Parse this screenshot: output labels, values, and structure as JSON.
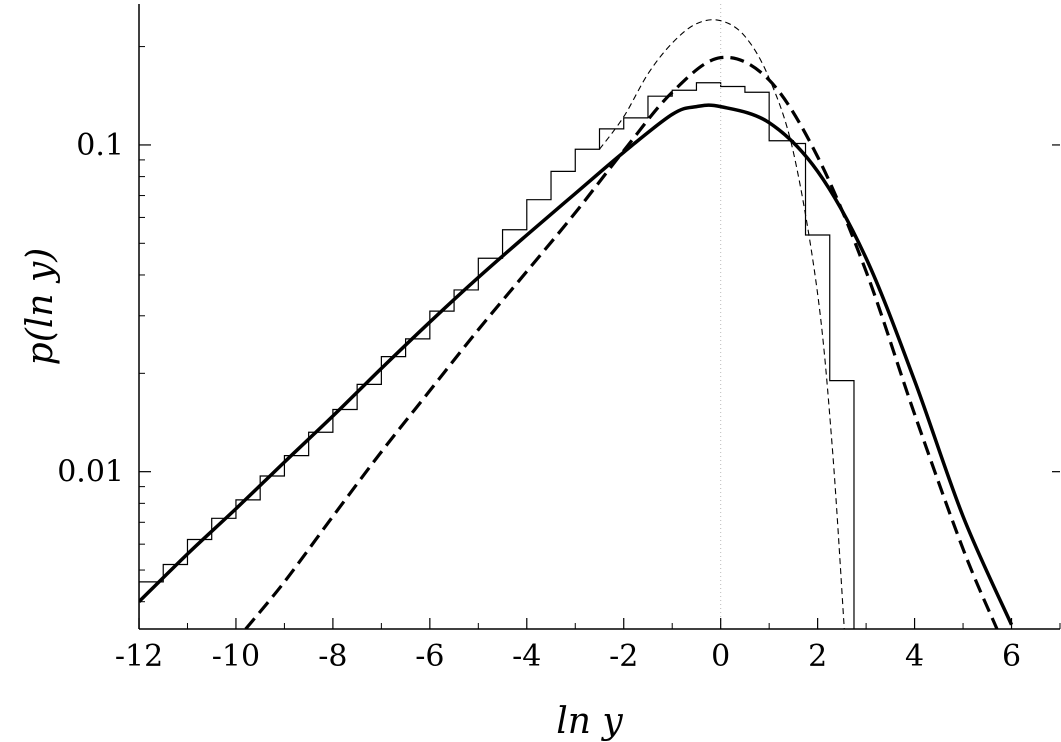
{
  "chart_data": {
    "type": "line",
    "xlabel": "ln y",
    "ylabel": "p(ln y)",
    "xlim": [
      -12,
      7
    ],
    "ylim": [
      0.0033,
      0.27
    ],
    "y_scale": "log",
    "grid": false,
    "x_ticks": [
      "-12",
      "-10",
      "-8",
      "-6",
      "-4",
      "-2",
      "0",
      "2",
      "4",
      "6"
    ],
    "y_ticks": [
      "0.01",
      "0.1"
    ],
    "histogram": {
      "edges": [
        -12,
        -11.5,
        -11,
        -10.5,
        -10,
        -9.5,
        -9,
        -8.5,
        -8,
        -7.5,
        -7,
        -6.5,
        -6,
        -5.5,
        -5,
        -4.5,
        -4,
        -3.5,
        -3,
        -2.5,
        -2,
        -1.5,
        -1,
        -0.5,
        0,
        0.5,
        1,
        1.5,
        1.75,
        2.25,
        2.75
      ],
      "values": [
        0.0046,
        0.0052,
        0.0062,
        0.0072,
        0.0082,
        0.0097,
        0.0112,
        0.0132,
        0.0155,
        0.0185,
        0.0225,
        0.0255,
        0.031,
        0.036,
        0.045,
        0.055,
        0.068,
        0.083,
        0.097,
        0.112,
        0.121,
        0.141,
        0.147,
        0.155,
        0.151,
        0.145,
        0.103,
        0.101,
        0.053,
        0.019
      ]
    },
    "series": [
      {
        "style": "solid-thick",
        "x": [
          -12,
          -11,
          -10,
          -9,
          -8,
          -7,
          -6,
          -5,
          -4,
          -3,
          -2,
          -1,
          -0.5,
          0,
          1,
          2,
          3,
          4,
          5,
          6
        ],
        "values": [
          0.004,
          0.0056,
          0.0077,
          0.0107,
          0.0148,
          0.0207,
          0.0287,
          0.0393,
          0.053,
          0.071,
          0.095,
          0.124,
          0.131,
          0.131,
          0.117,
          0.083,
          0.045,
          0.019,
          0.0073,
          0.0034
        ]
      },
      {
        "style": "dashed-thick",
        "x": [
          -9.8,
          -9,
          -8,
          -7,
          -6,
          -5,
          -4,
          -3,
          -2,
          -1,
          0,
          1,
          2,
          3,
          4,
          5,
          5.7
        ],
        "values": [
          0.0033,
          0.0046,
          0.0073,
          0.0115,
          0.0177,
          0.0272,
          0.041,
          0.062,
          0.096,
          0.145,
          0.185,
          0.158,
          0.092,
          0.041,
          0.015,
          0.0058,
          0.0033
        ]
      },
      {
        "style": "dashed-thin",
        "x": [
          -2.5,
          -2,
          -1.5,
          -1,
          -0.5,
          0,
          0.5,
          1,
          1.5,
          2,
          2.3,
          2.55
        ],
        "values": [
          0.097,
          0.122,
          0.165,
          0.205,
          0.235,
          0.24,
          0.215,
          0.16,
          0.095,
          0.035,
          0.012,
          0.0033
        ]
      }
    ]
  }
}
